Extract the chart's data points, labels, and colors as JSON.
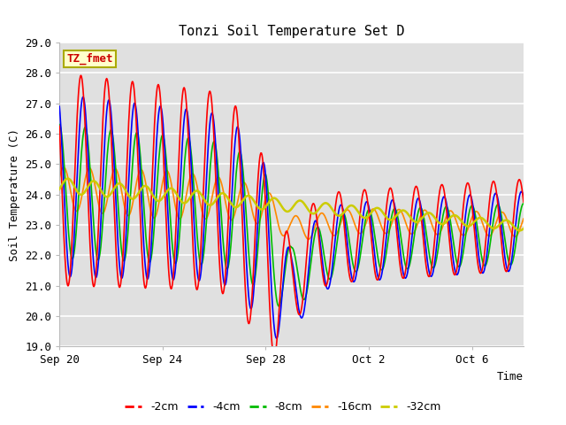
{
  "title": "Tonzi Soil Temperature Set D",
  "xlabel": "Time",
  "ylabel": "Soil Temperature (C)",
  "ylim": [
    19.0,
    29.0
  ],
  "yticks": [
    19.0,
    20.0,
    21.0,
    22.0,
    23.0,
    24.0,
    25.0,
    26.0,
    27.0,
    28.0,
    29.0
  ],
  "xtick_labels": [
    "Sep 20",
    "Sep 24",
    "Sep 28",
    "Oct 2",
    "Oct 6"
  ],
  "xtick_positions": [
    0,
    4,
    8,
    12,
    16
  ],
  "bg_color": "#e0e0e0",
  "fig_bg": "#ffffff",
  "grid_color": "#ffffff",
  "legend_label": "TZ_fmet",
  "legend_bg": "#ffffcc",
  "legend_border": "#aaaa00",
  "series_colors": {
    "-2cm": "#ff0000",
    "-4cm": "#0000ff",
    "-8cm": "#00bb00",
    "-16cm": "#ff8800",
    "-32cm": "#cccc00"
  },
  "series_linewidths": {
    "-2cm": 1.2,
    "-4cm": 1.2,
    "-8cm": 1.2,
    "-16cm": 1.2,
    "-32cm": 1.8
  },
  "days": 18
}
